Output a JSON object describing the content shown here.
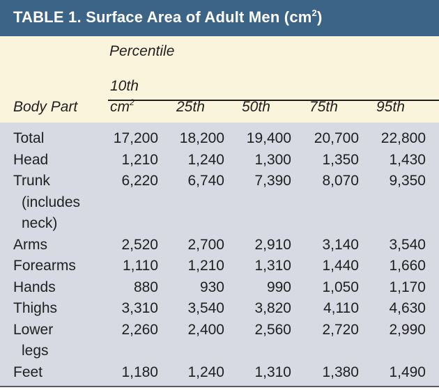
{
  "title": {
    "main": "TABLE 1.  Surface Area of Adult Men (cm",
    "sup": "2",
    "close": ")"
  },
  "header": {
    "percentile": "Percentile",
    "body_part": "Body Part",
    "col_10_line1": "10th",
    "col_10_line2": "cm",
    "col_10_sup": "2",
    "col_25": "25th",
    "col_50": "50th",
    "col_75": "75th",
    "col_95": "95th"
  },
  "rows": [
    {
      "label": [
        "Total"
      ],
      "values": [
        "17,200",
        "18,200",
        "19,400",
        "20,700",
        "22,800"
      ]
    },
    {
      "label": [
        "Head"
      ],
      "values": [
        "1,210",
        "1,240",
        "1,300",
        "1,350",
        "1,430"
      ]
    },
    {
      "label": [
        "Trunk",
        "(includes",
        "neck)"
      ],
      "values": [
        "6,220",
        "6,740",
        "7,390",
        "8,070",
        "9,350"
      ]
    },
    {
      "label": [
        "Arms"
      ],
      "values": [
        "2,520",
        "2,700",
        "2,910",
        "3,140",
        "3,540"
      ]
    },
    {
      "label": [
        "Forearms"
      ],
      "values": [
        "1,110",
        "1,210",
        "1,310",
        "1,440",
        "1,660"
      ]
    },
    {
      "label": [
        "Hands"
      ],
      "values": [
        "880",
        "930",
        "990",
        "1,050",
        "1,170"
      ]
    },
    {
      "label": [
        "Thighs"
      ],
      "values": [
        "3,310",
        "3,540",
        "3,820",
        "4,110",
        "4,630"
      ]
    },
    {
      "label": [
        "Lower",
        "legs"
      ],
      "values": [
        "2,260",
        "2,400",
        "2,560",
        "2,720",
        "2,990"
      ]
    },
    {
      "label": [
        "Feet"
      ],
      "values": [
        "1,180",
        "1,240",
        "1,310",
        "1,380",
        "1,490"
      ]
    }
  ]
}
